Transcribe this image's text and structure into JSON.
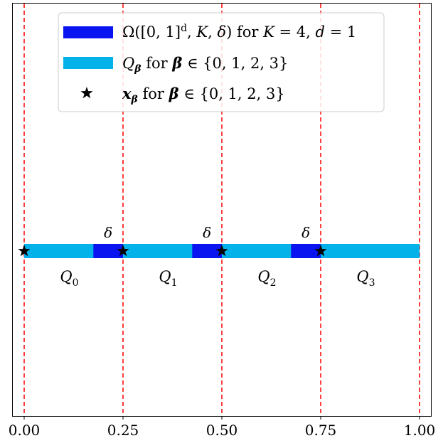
{
  "chart_data": {
    "type": "line",
    "xlim": [
      0,
      1
    ],
    "x_ticks": [
      "0.00",
      "0.25",
      "0.50",
      "0.75",
      "1.00"
    ],
    "vlines": [
      0,
      0.25,
      0.5,
      0.75,
      1.0
    ],
    "grid": false,
    "legend_position": "top-center",
    "legend": [
      {
        "label": "Ω([0, 1]^d, K, δ) for K = 4, d = 1",
        "color": "#0a14f0",
        "marker": "bar"
      },
      {
        "label": "Q_β for β ∈ {0, 1, 2, 3}",
        "color": "#02b2e8",
        "marker": "bar"
      },
      {
        "label": "x_β for β ∈ {0, 1, 2, 3}",
        "color": "#000000",
        "marker": "star"
      }
    ],
    "segments_Q": [
      {
        "name": "Q0",
        "x0": 0.0,
        "x1": 0.25
      },
      {
        "name": "Q1",
        "x0": 0.25,
        "x1": 0.5
      },
      {
        "name": "Q2",
        "x0": 0.5,
        "x1": 0.75
      },
      {
        "name": "Q3",
        "x0": 0.75,
        "x1": 1.0
      }
    ],
    "segments_omega": [
      {
        "x0": 0.175,
        "x1": 0.25,
        "label": "δ"
      },
      {
        "x0": 0.425,
        "x1": 0.5,
        "label": "δ"
      },
      {
        "x0": 0.675,
        "x1": 0.75,
        "label": "δ"
      }
    ],
    "stars_x": [
      0,
      0.25,
      0.5,
      0.75
    ],
    "colors": {
      "omega": "#0a14f0",
      "q": "#02b2e8",
      "vline": "#ff0000",
      "star": "#000000"
    }
  }
}
